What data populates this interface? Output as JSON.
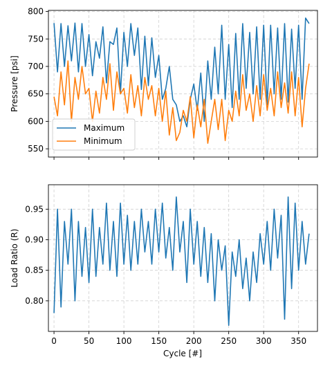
{
  "chart_data": [
    {
      "type": "line",
      "panel": "top",
      "xlabel": "",
      "ylabel": "Pressure [psi]",
      "xlim": [
        -8,
        377
      ],
      "ylim": [
        535,
        802
      ],
      "xticks": [
        0,
        50,
        100,
        150,
        200,
        250,
        300,
        350
      ],
      "yticks": [
        550,
        600,
        650,
        700,
        750,
        800
      ],
      "ytick_labels": [
        "550",
        "600",
        "650",
        "700",
        "750",
        "800"
      ],
      "grid": true,
      "legend": "lower-left",
      "series": [
        {
          "name": "Maximum",
          "color": "#1f77b4",
          "x": [
            0,
            5,
            10,
            15,
            20,
            25,
            30,
            35,
            40,
            45,
            50,
            55,
            60,
            65,
            70,
            75,
            80,
            85,
            90,
            95,
            100,
            105,
            110,
            115,
            120,
            125,
            130,
            135,
            140,
            145,
            150,
            155,
            160,
            165,
            170,
            175,
            180,
            185,
            190,
            195,
            200,
            205,
            210,
            215,
            220,
            225,
            230,
            235,
            240,
            245,
            250,
            255,
            260,
            265,
            270,
            275,
            280,
            285,
            290,
            295,
            300,
            305,
            310,
            315,
            320,
            325,
            330,
            335,
            340,
            345,
            350,
            355,
            360,
            365
          ],
          "values": [
            779,
            690,
            778,
            700,
            774,
            710,
            779,
            690,
            778,
            700,
            758,
            683,
            745,
            715,
            772,
            670,
            745,
            740,
            770,
            650,
            762,
            700,
            778,
            720,
            770,
            658,
            755,
            665,
            752,
            680,
            720,
            640,
            660,
            700,
            640,
            630,
            600,
            610,
            590,
            640,
            668,
            620,
            688,
            600,
            710,
            640,
            735,
            650,
            775,
            640,
            740,
            625,
            760,
            640,
            778,
            660,
            762,
            650,
            772,
            640,
            775,
            630,
            775,
            650,
            770,
            640,
            778,
            635,
            768,
            660,
            775,
            640,
            788,
            778
          ]
        },
        {
          "name": "Minimum",
          "color": "#ff7f0e",
          "x": [
            0,
            5,
            10,
            15,
            20,
            25,
            30,
            35,
            40,
            45,
            50,
            55,
            60,
            65,
            70,
            75,
            80,
            85,
            90,
            95,
            100,
            105,
            110,
            115,
            120,
            125,
            130,
            135,
            140,
            145,
            150,
            155,
            160,
            165,
            170,
            175,
            180,
            185,
            190,
            195,
            200,
            205,
            210,
            215,
            220,
            225,
            230,
            235,
            240,
            245,
            250,
            255,
            260,
            265,
            270,
            275,
            280,
            285,
            290,
            295,
            300,
            305,
            310,
            315,
            320,
            325,
            330,
            335,
            340,
            345,
            350,
            355,
            360,
            365
          ],
          "values": [
            645,
            610,
            690,
            630,
            710,
            600,
            680,
            640,
            700,
            650,
            660,
            600,
            655,
            615,
            680,
            640,
            705,
            620,
            690,
            650,
            660,
            615,
            685,
            625,
            665,
            610,
            680,
            640,
            665,
            610,
            660,
            600,
            655,
            575,
            625,
            565,
            580,
            620,
            600,
            645,
            570,
            630,
            590,
            640,
            560,
            600,
            640,
            585,
            640,
            565,
            620,
            600,
            655,
            610,
            685,
            620,
            650,
            600,
            665,
            610,
            685,
            620,
            660,
            610,
            690,
            625,
            670,
            615,
            690,
            610,
            680,
            590,
            660,
            705
          ]
        }
      ]
    },
    {
      "type": "line",
      "panel": "bottom",
      "xlabel": "Cycle [#]",
      "ylabel": "Load Ratio (R)",
      "xlim": [
        -8,
        377
      ],
      "ylim": [
        0.75,
        0.99
      ],
      "xticks": [
        0,
        50,
        100,
        150,
        200,
        250,
        300,
        350
      ],
      "xtick_labels": [
        "0",
        "50",
        "100",
        "150",
        "200",
        "250",
        "300",
        "350"
      ],
      "yticks": [
        0.8,
        0.85,
        0.9,
        0.95
      ],
      "ytick_labels": [
        "0.80",
        "0.85",
        "0.90",
        "0.95"
      ],
      "grid": true,
      "series": [
        {
          "color": "#1f77b4",
          "x": [
            0,
            5,
            10,
            15,
            20,
            25,
            30,
            35,
            40,
            45,
            50,
            55,
            60,
            65,
            70,
            75,
            80,
            85,
            90,
            95,
            100,
            105,
            110,
            115,
            120,
            125,
            130,
            135,
            140,
            145,
            150,
            155,
            160,
            165,
            170,
            175,
            180,
            185,
            190,
            195,
            200,
            205,
            210,
            215,
            220,
            225,
            230,
            235,
            240,
            245,
            250,
            255,
            260,
            265,
            270,
            275,
            280,
            285,
            290,
            295,
            300,
            305,
            310,
            315,
            320,
            325,
            330,
            335,
            340,
            345,
            350,
            355,
            360,
            365
          ],
          "values": [
            0.78,
            0.95,
            0.79,
            0.93,
            0.86,
            0.95,
            0.8,
            0.93,
            0.84,
            0.92,
            0.83,
            0.95,
            0.84,
            0.92,
            0.86,
            0.96,
            0.85,
            0.93,
            0.84,
            0.96,
            0.86,
            0.94,
            0.85,
            0.93,
            0.86,
            0.95,
            0.88,
            0.93,
            0.86,
            0.95,
            0.88,
            0.96,
            0.87,
            0.92,
            0.85,
            0.97,
            0.88,
            0.93,
            0.83,
            0.95,
            0.86,
            0.93,
            0.84,
            0.92,
            0.83,
            0.91,
            0.8,
            0.9,
            0.85,
            0.89,
            0.76,
            0.88,
            0.84,
            0.9,
            0.82,
            0.87,
            0.8,
            0.88,
            0.83,
            0.91,
            0.86,
            0.93,
            0.85,
            0.95,
            0.87,
            0.94,
            0.77,
            0.97,
            0.82,
            0.96,
            0.85,
            0.93,
            0.86,
            0.91
          ]
        }
      ]
    }
  ],
  "legend": {
    "items": [
      {
        "label": "Maximum",
        "color": "#1f77b4"
      },
      {
        "label": "Minimum",
        "color": "#ff7f0e"
      }
    ]
  }
}
